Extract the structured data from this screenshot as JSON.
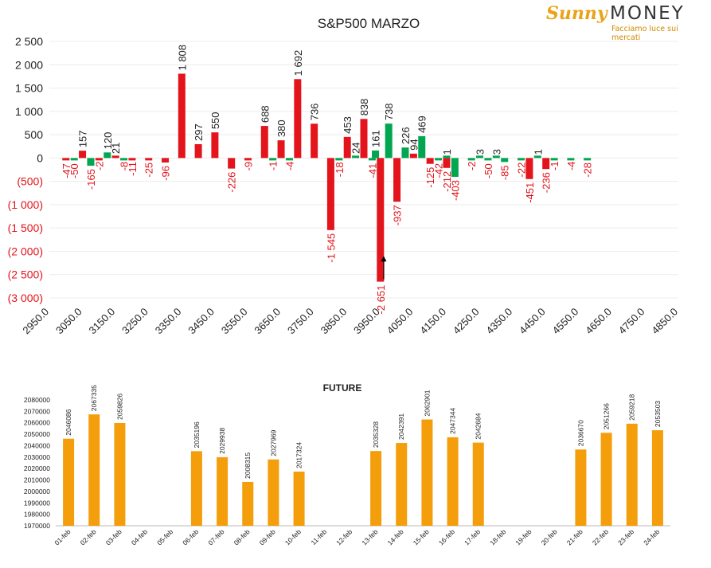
{
  "logo": {
    "brand_a": "Sunny",
    "brand_b": "MONEY",
    "tagline": "Facciamo luce sui mercati"
  },
  "colors": {
    "positive": "#00a650",
    "negative": "#e3141b",
    "future_bar": "#f59e0b",
    "text": "#222222"
  },
  "chart_data": [
    {
      "type": "bar",
      "title": "S&P500 MARZO",
      "xlabel": "",
      "ylabel": "",
      "ylim": [
        -3000,
        2500
      ],
      "yticks": [
        2500,
        2000,
        1500,
        1000,
        500,
        0,
        -500,
        -1000,
        -1500,
        -2000,
        -2500,
        -3000
      ],
      "ytick_labels": [
        "2 500",
        "2 000",
        "1 500",
        "1 000",
        "500",
        "0",
        "(500)",
        "(1 000)",
        "(1 500)",
        "(2 000)",
        "(2 500)",
        "(3 000)"
      ],
      "xlim": [
        2950,
        4850
      ],
      "xticks": [
        2950,
        3050,
        3150,
        3250,
        3350,
        3450,
        3550,
        3650,
        3750,
        3850,
        3950,
        4050,
        4150,
        4250,
        4350,
        4450,
        4550,
        4650,
        4750,
        4850
      ],
      "xtick_labels": [
        "2950.0",
        "3050.0",
        "3150.0",
        "3250.0",
        "3350.0",
        "3450.0",
        "3550.0",
        "3650.0",
        "3750.0",
        "3850.0",
        "3950.0",
        "4050.0",
        "4150.0",
        "4250.0",
        "4350.0",
        "4450.0",
        "4550.0",
        "4650.0",
        "4750.0",
        "4850.0"
      ],
      "series": [
        {
          "name": "",
          "color": "#e3141b",
          "points": [
            {
              "x": 3000,
              "value": -47,
              "label": "-47"
            },
            {
              "x": 3050,
              "value": 157,
              "label": "157"
            },
            {
              "x": 3100,
              "value": -2,
              "label": "-2"
            },
            {
              "x": 3150,
              "value": 21,
              "label": "21"
            },
            {
              "x": 3200,
              "value": -11,
              "label": "-11"
            },
            {
              "x": 3250,
              "value": -25,
              "label": "-25"
            },
            {
              "x": 3300,
              "value": -96,
              "label": "-96"
            },
            {
              "x": 3350,
              "value": 1808,
              "label": "1 808"
            },
            {
              "x": 3400,
              "value": 297,
              "label": "297"
            },
            {
              "x": 3450,
              "value": 550,
              "label": "550"
            },
            {
              "x": 3500,
              "value": -226,
              "label": "-226"
            },
            {
              "x": 3550,
              "value": -9,
              "label": "-9"
            },
            {
              "x": 3600,
              "value": 688,
              "label": "688"
            },
            {
              "x": 3650,
              "value": 380,
              "label": "380"
            },
            {
              "x": 3700,
              "value": 1692,
              "label": "1 692"
            },
            {
              "x": 3750,
              "value": 736,
              "label": "736"
            },
            {
              "x": 3800,
              "value": -1545,
              "label": "-1 545"
            },
            {
              "x": 3850,
              "value": 453,
              "label": "453"
            },
            {
              "x": 3900,
              "value": 838,
              "label": "838"
            },
            {
              "x": 3950,
              "value": -2651,
              "label": "-2 651"
            },
            {
              "x": 4000,
              "value": -937,
              "label": "-937"
            },
            {
              "x": 4050,
              "value": 94,
              "label": "94"
            },
            {
              "x": 4100,
              "value": -125,
              "label": "-125"
            },
            {
              "x": 4150,
              "value": -212,
              "label": "-212"
            },
            {
              "x": 4400,
              "value": -451,
              "label": "-451"
            },
            {
              "x": 4450,
              "value": -236,
              "label": "-236"
            }
          ]
        },
        {
          "name": "",
          "color": "#00a650",
          "points": [
            {
              "x": 3025,
              "value": -50,
              "label": "-50"
            },
            {
              "x": 3075,
              "value": -165,
              "label": "-165"
            },
            {
              "x": 3125,
              "value": 120,
              "label": "120"
            },
            {
              "x": 3175,
              "value": -8,
              "label": "-8"
            },
            {
              "x": 3625,
              "value": -1,
              "label": "-1"
            },
            {
              "x": 3675,
              "value": -4,
              "label": "-4"
            },
            {
              "x": 3825,
              "value": -18,
              "label": "-18"
            },
            {
              "x": 3875,
              "value": 24,
              "label": "24"
            },
            {
              "x": 3925,
              "value": -41,
              "label": "-41"
            },
            {
              "x": 3935,
              "value": 161,
              "label": "161"
            },
            {
              "x": 3975,
              "value": 738,
              "label": "738"
            },
            {
              "x": 4025,
              "value": 226,
              "label": "226"
            },
            {
              "x": 4075,
              "value": 469,
              "label": "469"
            },
            {
              "x": 4125,
              "value": -42,
              "label": "-42"
            },
            {
              "x": 4150,
              "value": 1,
              "label": "1"
            },
            {
              "x": 4175,
              "value": -403,
              "label": "-403"
            },
            {
              "x": 4225,
              "value": -2,
              "label": "-2"
            },
            {
              "x": 4250,
              "value": 3,
              "label": "3"
            },
            {
              "x": 4275,
              "value": -50,
              "label": "-50"
            },
            {
              "x": 4300,
              "value": 3,
              "label": "3"
            },
            {
              "x": 4325,
              "value": -85,
              "label": "-85"
            },
            {
              "x": 4375,
              "value": -22,
              "label": "-22"
            },
            {
              "x": 4425,
              "value": 1,
              "label": "1"
            },
            {
              "x": 4475,
              "value": -1,
              "label": "-1"
            },
            {
              "x": 4525,
              "value": -4,
              "label": "-4"
            },
            {
              "x": 4575,
              "value": -28,
              "label": "-28"
            }
          ]
        }
      ],
      "annotations": [
        {
          "type": "arrow",
          "x": 3960,
          "from": -2600,
          "to": -2100
        }
      ],
      "grid": true
    },
    {
      "type": "bar",
      "title": "FUTURE",
      "xlabel": "",
      "ylabel": "",
      "ylim": [
        1970000,
        2080000
      ],
      "yticks": [
        1970000,
        1980000,
        1990000,
        2000000,
        2010000,
        2020000,
        2030000,
        2040000,
        2050000,
        2060000,
        2070000,
        2080000
      ],
      "categories": [
        "01-feb",
        "02-feb",
        "03-feb",
        "04-feb",
        "05-feb",
        "06-feb",
        "07-feb",
        "08-feb",
        "09-feb",
        "10-feb",
        "11-feb",
        "12-feb",
        "13-feb",
        "14-feb",
        "15-feb",
        "16-feb",
        "17-feb",
        "18-feb",
        "19-feb",
        "20-feb",
        "21-feb",
        "22-feb",
        "23-feb",
        "24-feb"
      ],
      "values": [
        2046086,
        2067335,
        2059826,
        null,
        null,
        2035196,
        2029938,
        2008315,
        2027969,
        2017324,
        null,
        null,
        2035328,
        2042391,
        2062901,
        2047344,
        2042684,
        null,
        null,
        null,
        2036670,
        2051266,
        2059218,
        2053503
      ],
      "color": "#f59e0b",
      "grid": false
    }
  ]
}
